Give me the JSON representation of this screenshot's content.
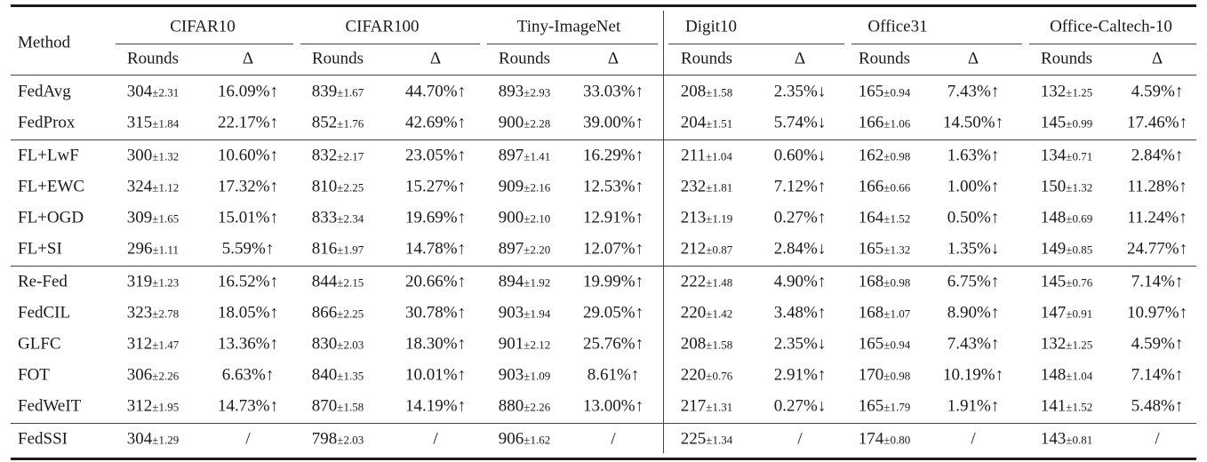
{
  "table": {
    "method_header": "Method",
    "datasets": [
      "CIFAR10",
      "CIFAR100",
      "Tiny-ImageNet",
      "Digit10",
      "Office31",
      "Office-Caltech-10"
    ],
    "sub_headers": [
      "Rounds",
      "Δ"
    ],
    "groups": [
      {
        "rows": [
          {
            "method": "FedAvg",
            "cells": [
              [
                "304",
                "±2.31"
              ],
              [
                "16.09%↑"
              ],
              [
                "839",
                "±1.67"
              ],
              [
                "44.70%↑"
              ],
              [
                "893",
                "±2.93"
              ],
              [
                "33.03%↑"
              ],
              [
                "208",
                "±1.58"
              ],
              [
                "2.35%↓"
              ],
              [
                "165",
                "±0.94"
              ],
              [
                "7.43%↑"
              ],
              [
                "132",
                "±1.25"
              ],
              [
                "4.59%↑"
              ]
            ]
          },
          {
            "method": "FedProx",
            "cells": [
              [
                "315",
                "±1.84"
              ],
              [
                "22.17%↑"
              ],
              [
                "852",
                "±1.76"
              ],
              [
                "42.69%↑"
              ],
              [
                "900",
                "±2.28"
              ],
              [
                "39.00%↑"
              ],
              [
                "204",
                "±1.51"
              ],
              [
                "5.74%↓"
              ],
              [
                "166",
                "±1.06"
              ],
              [
                "14.50%↑"
              ],
              [
                "145",
                "±0.99"
              ],
              [
                "17.46%↑"
              ]
            ]
          }
        ]
      },
      {
        "rows": [
          {
            "method": "FL+LwF",
            "cells": [
              [
                "300",
                "±1.32"
              ],
              [
                "10.60%↑"
              ],
              [
                "832",
                "±2.17"
              ],
              [
                "23.05%↑"
              ],
              [
                "897",
                "±1.41"
              ],
              [
                "16.29%↑"
              ],
              [
                "211",
                "±1.04"
              ],
              [
                "0.60%↓"
              ],
              [
                "162",
                "±0.98"
              ],
              [
                "1.63%↑"
              ],
              [
                "134",
                "±0.71"
              ],
              [
                "2.84%↑"
              ]
            ]
          },
          {
            "method": "FL+EWC",
            "cells": [
              [
                "324",
                "±1.12"
              ],
              [
                "17.32%↑"
              ],
              [
                "810",
                "±2.25"
              ],
              [
                "15.27%↑"
              ],
              [
                "909",
                "±2.16"
              ],
              [
                "12.53%↑"
              ],
              [
                "232",
                "±1.81"
              ],
              [
                "7.12%↑"
              ],
              [
                "166",
                "±0.66"
              ],
              [
                "1.00%↑"
              ],
              [
                "150",
                "±1.32"
              ],
              [
                "11.28%↑"
              ]
            ]
          },
          {
            "method": "FL+OGD",
            "cells": [
              [
                "309",
                "±1.65"
              ],
              [
                "15.01%↑"
              ],
              [
                "833",
                "±2.34"
              ],
              [
                "19.69%↑"
              ],
              [
                "900",
                "±2.10"
              ],
              [
                "12.91%↑"
              ],
              [
                "213",
                "±1.19"
              ],
              [
                "0.27%↑"
              ],
              [
                "164",
                "±1.52"
              ],
              [
                "0.50%↑"
              ],
              [
                "148",
                "±0.69"
              ],
              [
                "11.24%↑"
              ]
            ]
          },
          {
            "method": "FL+SI",
            "cells": [
              [
                "296",
                "±1.11"
              ],
              [
                "5.59%↑"
              ],
              [
                "816",
                "±1.97"
              ],
              [
                "14.78%↑"
              ],
              [
                "897",
                "±2.20"
              ],
              [
                "12.07%↑"
              ],
              [
                "212",
                "±0.87"
              ],
              [
                "2.84%↓"
              ],
              [
                "165",
                "±1.32"
              ],
              [
                "1.35%↓"
              ],
              [
                "149",
                "±0.85"
              ],
              [
                "24.77%↑"
              ]
            ]
          }
        ]
      },
      {
        "rows": [
          {
            "method": "Re-Fed",
            "cells": [
              [
                "319",
                "±1.23"
              ],
              [
                "16.52%↑"
              ],
              [
                "844",
                "±2.15"
              ],
              [
                "20.66%↑"
              ],
              [
                "894",
                "±1.92"
              ],
              [
                "19.99%↑"
              ],
              [
                "222",
                "±1.48"
              ],
              [
                "4.90%↑"
              ],
              [
                "168",
                "±0.98"
              ],
              [
                "6.75%↑"
              ],
              [
                "145",
                "±0.76"
              ],
              [
                "7.14%↑"
              ]
            ]
          },
          {
            "method": "FedCIL",
            "cells": [
              [
                "323",
                "±2.78"
              ],
              [
                "18.05%↑"
              ],
              [
                "866",
                "±2.25"
              ],
              [
                "30.78%↑"
              ],
              [
                "903",
                "±1.94"
              ],
              [
                "29.05%↑"
              ],
              [
                "220",
                "±1.42"
              ],
              [
                "3.48%↑"
              ],
              [
                "168",
                "±1.07"
              ],
              [
                "8.90%↑"
              ],
              [
                "147",
                "±0.91"
              ],
              [
                "10.97%↑"
              ]
            ]
          },
          {
            "method": "GLFC",
            "cells": [
              [
                "312",
                "±1.47"
              ],
              [
                "13.36%↑"
              ],
              [
                "830",
                "±2.03"
              ],
              [
                "18.30%↑"
              ],
              [
                "901",
                "±2.12"
              ],
              [
                "25.76%↑"
              ],
              [
                "208",
                "±1.58"
              ],
              [
                "2.35%↓"
              ],
              [
                "165",
                "±0.94"
              ],
              [
                "7.43%↑"
              ],
              [
                "132",
                "±1.25"
              ],
              [
                "4.59%↑"
              ]
            ]
          },
          {
            "method": "FOT",
            "cells": [
              [
                "306",
                "±2.26"
              ],
              [
                "6.63%↑"
              ],
              [
                "840",
                "±1.35"
              ],
              [
                "10.01%↑"
              ],
              [
                "903",
                "±1.09"
              ],
              [
                "8.61%↑"
              ],
              [
                "220",
                "±0.76"
              ],
              [
                "2.91%↑"
              ],
              [
                "170",
                "±0.98"
              ],
              [
                "10.19%↑"
              ],
              [
                "148",
                "±1.04"
              ],
              [
                "7.14%↑"
              ]
            ]
          },
          {
            "method": "FedWeIT",
            "cells": [
              [
                "312",
                "±1.95"
              ],
              [
                "14.73%↑"
              ],
              [
                "870",
                "±1.58"
              ],
              [
                "14.19%↑"
              ],
              [
                "880",
                "±2.26"
              ],
              [
                "13.00%↑"
              ],
              [
                "217",
                "±1.31"
              ],
              [
                "0.27%↓"
              ],
              [
                "165",
                "±1.79"
              ],
              [
                "1.91%↑"
              ],
              [
                "141",
                "±1.52"
              ],
              [
                "5.48%↑"
              ]
            ]
          }
        ]
      },
      {
        "rows": [
          {
            "method": "FedSSI",
            "cells": [
              [
                "304",
                "±1.29"
              ],
              [
                "/"
              ],
              [
                "798",
                "±2.03"
              ],
              [
                "/"
              ],
              [
                "906",
                "±1.62"
              ],
              [
                "/"
              ],
              [
                "225",
                "±1.34"
              ],
              [
                "/"
              ],
              [
                "174",
                "±0.80"
              ],
              [
                "/"
              ],
              [
                "143",
                "±0.81"
              ],
              [
                "/"
              ]
            ]
          }
        ]
      }
    ]
  }
}
